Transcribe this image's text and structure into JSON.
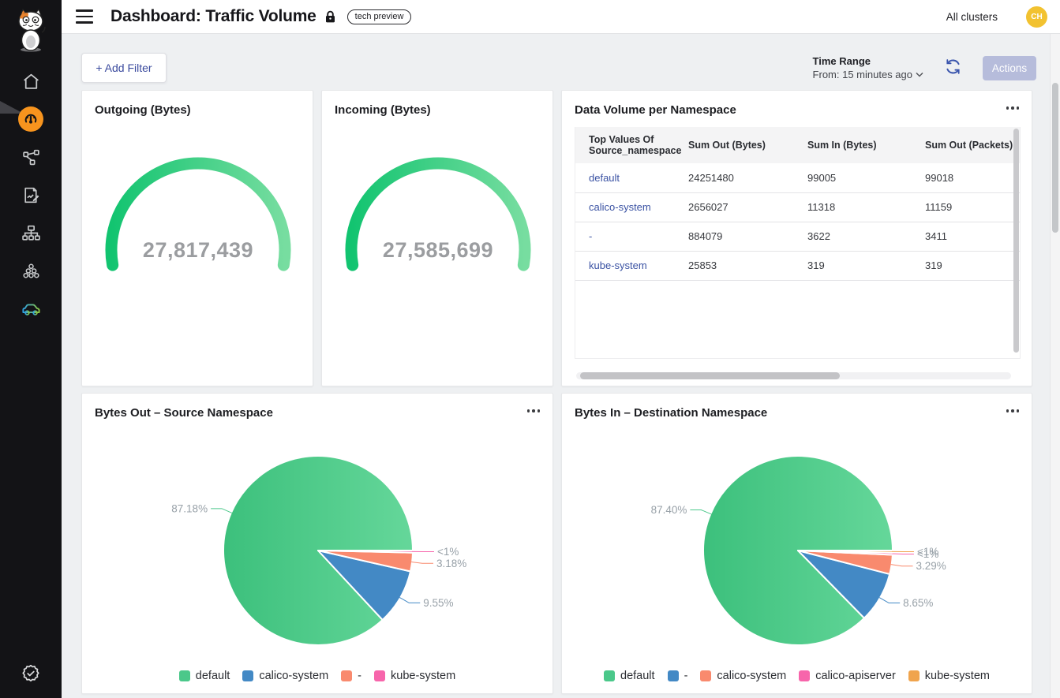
{
  "topbar": {
    "title": "Dashboard: Traffic Volume",
    "badge": "tech preview",
    "cluster_selector": "All clusters",
    "avatar_initials": "CH"
  },
  "filter_bar": {
    "add_filter_label": "+ Add Filter",
    "time_range_label": "Time Range",
    "time_range_value": "From: 15 minutes ago",
    "actions_label": "Actions"
  },
  "sidebar": {
    "icons": [
      "calico-cat-logo",
      "home-icon",
      "dashboard-gauge-icon",
      "service-graph-icon",
      "policy-report-icon",
      "network-tree-icon",
      "cluster-nodes-icon",
      "car-icon",
      "verified-badge-icon"
    ],
    "active_item": "dashboard-gauge-icon"
  },
  "colors": {
    "accent_orange": "#F7941E",
    "link_blue": "#3A52A3",
    "avatar_yellow": "#F2C230",
    "gauge_gradient": [
      "#12C470",
      "#77DDA0"
    ],
    "series_green": "#4BC88A",
    "series_blue": "#4389C5",
    "series_salmon": "#F98A6E",
    "series_pink": "#F765AB",
    "series_orange": "#F0A44D"
  },
  "table_card": {
    "title": "Data Volume per Namespace",
    "columns": [
      "Top Values Of Source_namespace",
      "Sum Out (Bytes)",
      "Sum In (Bytes)",
      "Sum Out (Packets)"
    ],
    "rows": [
      {
        "namespace": "default",
        "values": [
          "24251480",
          "99005",
          "99018"
        ]
      },
      {
        "namespace": "calico-system",
        "values": [
          "2656027",
          "11318",
          "11159"
        ]
      },
      {
        "namespace": "-",
        "values": [
          "884079",
          "3622",
          "3411"
        ]
      },
      {
        "namespace": "kube-system",
        "values": [
          "25853",
          "319",
          "319"
        ]
      }
    ]
  },
  "chart_data": [
    {
      "type": "gauge",
      "title": "Outgoing (Bytes)",
      "value": 27817439,
      "display_value": "27,817,439",
      "arc_color_start": "#12C470",
      "arc_color_end": "#77DDA0"
    },
    {
      "type": "gauge",
      "title": "Incoming (Bytes)",
      "value": 27585699,
      "display_value": "27,585,699",
      "arc_color_start": "#12C470",
      "arc_color_end": "#77DDA0"
    },
    {
      "type": "pie",
      "title": "Bytes Out – Source Namespace",
      "legend_position": "bottom",
      "slices": [
        {
          "name": "default",
          "pct": 87.18,
          "label": "87.18%",
          "color": "#4BC88A",
          "gradient": [
            "#3CC07C",
            "#65D79A"
          ]
        },
        {
          "name": "calico-system",
          "pct": 9.55,
          "label": "9.55%",
          "color": "#4389C5"
        },
        {
          "name": "-",
          "pct": 3.18,
          "label": "3.18%",
          "color": "#F98A6E"
        },
        {
          "name": "kube-system",
          "pct": 0.09,
          "label": "<1%",
          "color": "#F765AB"
        }
      ]
    },
    {
      "type": "pie",
      "title": "Bytes In – Destination Namespace",
      "legend_position": "bottom",
      "slices": [
        {
          "name": "default",
          "pct": 87.4,
          "label": "87.40%",
          "color": "#4BC88A",
          "gradient": [
            "#3CC07C",
            "#65D79A"
          ]
        },
        {
          "name": "-",
          "pct": 8.65,
          "label": "8.65%",
          "color": "#4389C5"
        },
        {
          "name": "calico-system",
          "pct": 3.29,
          "label": "3.29%",
          "color": "#F98A6E"
        },
        {
          "name": "calico-apiserver",
          "pct": 0.36,
          "label": "<1%",
          "color": "#F765AB"
        },
        {
          "name": "kube-system",
          "pct": 0.3,
          "label": "<1%",
          "color": "#F0A44D"
        }
      ]
    }
  ]
}
